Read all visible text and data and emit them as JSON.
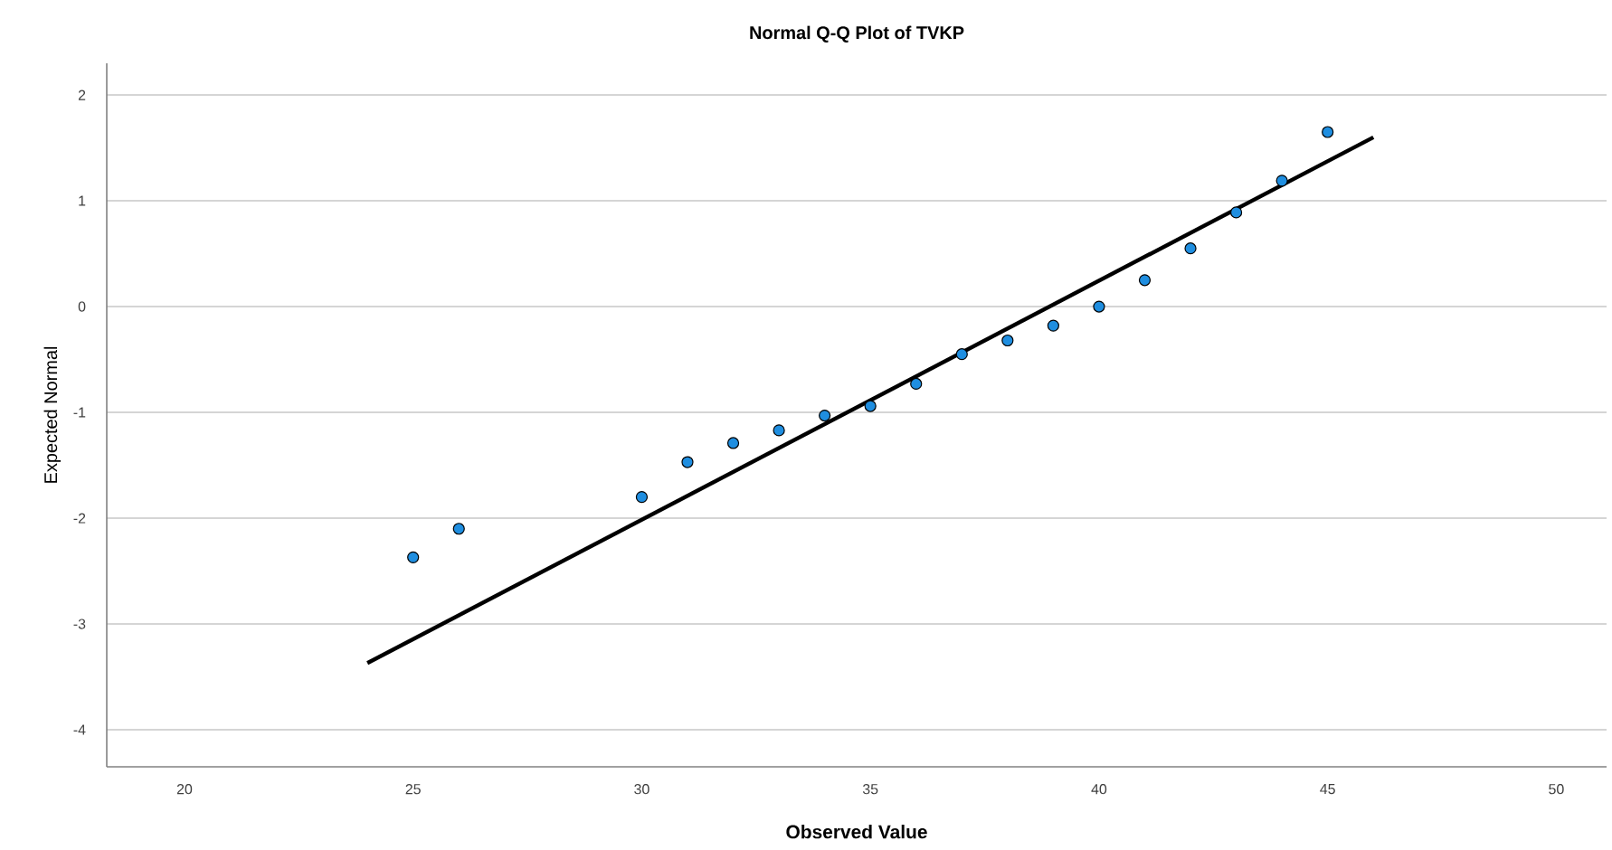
{
  "chart_data": {
    "type": "scatter",
    "title": "Normal Q-Q Plot of TVKP",
    "xlabel": "Observed Value",
    "ylabel": "Expected Normal",
    "xlim": [
      18.3,
      51.1
    ],
    "xticks": [
      20,
      25,
      30,
      35,
      40,
      45,
      50
    ],
    "ylim": [
      -4.35,
      2.3
    ],
    "yticks": [
      -4,
      -3,
      -2,
      -1,
      0,
      1,
      2
    ],
    "grid": "y",
    "series": [
      {
        "type": "scatter",
        "marker": "circle",
        "color": "#1f8ee0",
        "x": [
          25,
          26,
          30,
          31,
          32,
          33,
          34,
          35,
          36,
          37,
          38,
          39,
          40,
          41,
          42,
          43,
          44,
          45
        ],
        "values": [
          -2.37,
          -2.1,
          -1.8,
          -1.47,
          -1.29,
          -1.17,
          -1.03,
          -0.94,
          -0.73,
          -0.45,
          -0.32,
          -0.18,
          0.0,
          0.25,
          0.55,
          0.89,
          1.19,
          1.65
        ]
      },
      {
        "type": "line",
        "marker": "none",
        "color": "#000000",
        "x": [
          24,
          46
        ],
        "values": [
          -3.37,
          1.6
        ]
      }
    ]
  }
}
